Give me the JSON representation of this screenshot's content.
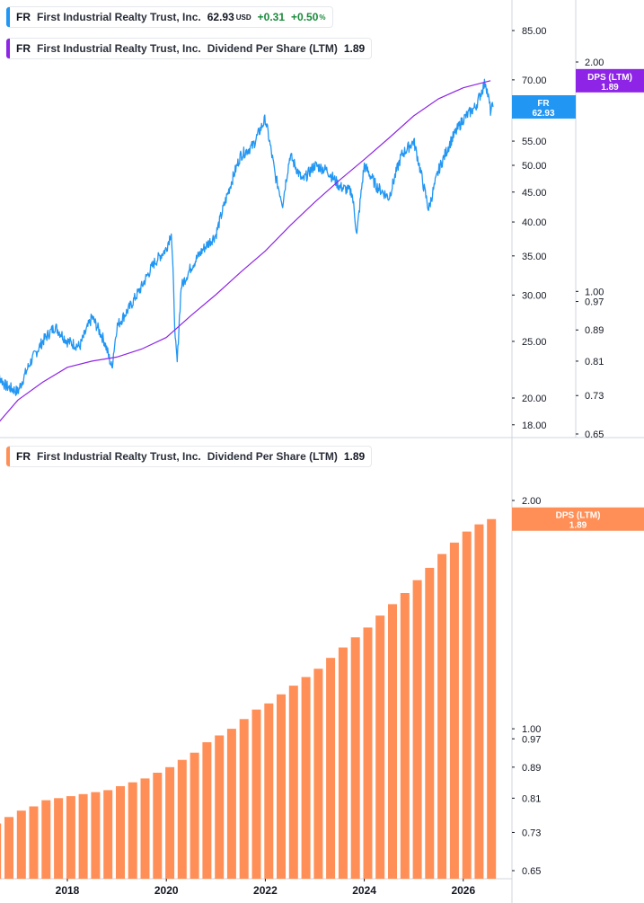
{
  "legends": {
    "price": {
      "symbol": "FR",
      "company": "First Industrial Realty Trust, Inc.",
      "last": "62.93",
      "currency": "USD",
      "change": "+0.31",
      "change_pct": "+0.50",
      "pct_sign": "%",
      "color": "#2196f3"
    },
    "dps_top": {
      "symbol": "FR",
      "company": "First Industrial Realty Trust, Inc.",
      "metric": "Dividend Per Share (LTM)",
      "value": "1.89",
      "color": "#8e24e6"
    },
    "dps_bottom": {
      "symbol": "FR",
      "company": "First Industrial Realty Trust, Inc.",
      "metric": "Dividend Per Share (LTM)",
      "value": "1.89",
      "color": "#ff8f57"
    }
  },
  "chart_data": [
    {
      "type": "line",
      "series": [
        {
          "name": "FR",
          "color": "#2196f3",
          "x": [
            2016.5,
            2016.75,
            2017.0,
            2017.25,
            2017.5,
            2017.75,
            2018.0,
            2018.25,
            2018.5,
            2018.75,
            2018.9,
            2019.0,
            2019.25,
            2019.5,
            2019.75,
            2020.0,
            2020.1,
            2020.18,
            2020.22,
            2020.3,
            2020.5,
            2020.75,
            2021.0,
            2021.25,
            2021.5,
            2021.75,
            2022.0,
            2022.2,
            2022.35,
            2022.5,
            2022.75,
            2023.0,
            2023.25,
            2023.5,
            2023.75,
            2023.85,
            2024.0,
            2024.25,
            2024.5,
            2024.75,
            2025.0,
            2025.2,
            2025.3,
            2025.5,
            2025.75,
            2026.0,
            2026.25,
            2026.45,
            2026.55,
            2026.6
          ],
          "values": [
            22.5,
            21.0,
            20.5,
            23.0,
            25.0,
            26.5,
            25.0,
            24.5,
            27.5,
            25.0,
            22.5,
            26.5,
            28.5,
            31.0,
            34.0,
            36.0,
            38.5,
            25.0,
            23.0,
            31.0,
            33.5,
            36.0,
            38.0,
            45.0,
            52.0,
            54.0,
            60.0,
            48.0,
            43.0,
            52.0,
            47.0,
            50.0,
            49.0,
            46.0,
            45.0,
            38.0,
            50.0,
            46.0,
            44.0,
            52.0,
            55.0,
            46.0,
            42.0,
            49.0,
            55.0,
            60.0,
            63.0,
            69.5,
            62.0,
            62.93
          ]
        },
        {
          "name": "DPS (LTM)",
          "color": "#8e24e6",
          "x": [
            2016.5,
            2017.0,
            2017.5,
            2018.0,
            2018.5,
            2019.0,
            2019.5,
            2020.0,
            2020.5,
            2021.0,
            2021.5,
            2022.0,
            2022.5,
            2023.0,
            2023.5,
            2024.0,
            2024.5,
            2025.0,
            2025.5,
            2026.0,
            2026.55
          ],
          "values": [
            0.66,
            0.72,
            0.76,
            0.795,
            0.81,
            0.82,
            0.84,
            0.87,
            0.93,
            0.99,
            1.06,
            1.13,
            1.22,
            1.31,
            1.4,
            1.49,
            1.59,
            1.7,
            1.79,
            1.85,
            1.89
          ]
        }
      ],
      "price_axis": {
        "scale": "log",
        "ticks": [
          "85.00",
          "70.00",
          "55.00",
          "50.00",
          "45.00",
          "40.00",
          "35.00",
          "30.00",
          "25.00",
          "20.00",
          "18.00"
        ],
        "current_label": {
          "text": "FR",
          "value": "62.93",
          "color": "#2196f3"
        }
      },
      "dps_axis": {
        "scale": "log",
        "ticks": [
          "2.00",
          "1.00",
          "0.97",
          "0.89",
          "0.81",
          "0.73",
          "0.65"
        ],
        "current_label": {
          "text": "DPS (LTM)",
          "value": "1.89",
          "color": "#8e24e6"
        }
      }
    },
    {
      "type": "bar",
      "series": [
        {
          "name": "DPS (LTM)",
          "color": "#ff8f57",
          "x": [
            2016.32,
            2016.57,
            2016.82,
            2017.07,
            2017.32,
            2017.57,
            2017.82,
            2018.07,
            2018.32,
            2018.57,
            2018.82,
            2019.07,
            2019.32,
            2019.57,
            2019.82,
            2020.07,
            2020.32,
            2020.57,
            2020.82,
            2021.07,
            2021.32,
            2021.57,
            2021.82,
            2022.07,
            2022.32,
            2022.57,
            2022.82,
            2023.07,
            2023.32,
            2023.57,
            2023.82,
            2024.07,
            2024.32,
            2024.57,
            2024.82,
            2025.07,
            2025.32,
            2025.57,
            2025.82,
            2026.07,
            2026.32,
            2026.57
          ],
          "values": [
            0.7,
            0.75,
            0.765,
            0.78,
            0.79,
            0.805,
            0.81,
            0.815,
            0.82,
            0.825,
            0.83,
            0.84,
            0.85,
            0.86,
            0.875,
            0.89,
            0.91,
            0.93,
            0.96,
            0.98,
            1.0,
            1.03,
            1.06,
            1.08,
            1.11,
            1.14,
            1.17,
            1.2,
            1.24,
            1.28,
            1.32,
            1.36,
            1.41,
            1.46,
            1.51,
            1.57,
            1.63,
            1.7,
            1.76,
            1.82,
            1.86,
            1.89
          ]
        }
      ],
      "dps_axis": {
        "scale": "log",
        "ticks": [
          "2.00",
          "1.00",
          "0.97",
          "0.89",
          "0.81",
          "0.73",
          "0.65"
        ],
        "current_label": {
          "text": "DPS (LTM)",
          "value": "1.89",
          "color": "#ff8f57"
        }
      },
      "x_axis": {
        "ticks": [
          "2018",
          "2020",
          "2022",
          "2024",
          "2026"
        ]
      }
    }
  ]
}
